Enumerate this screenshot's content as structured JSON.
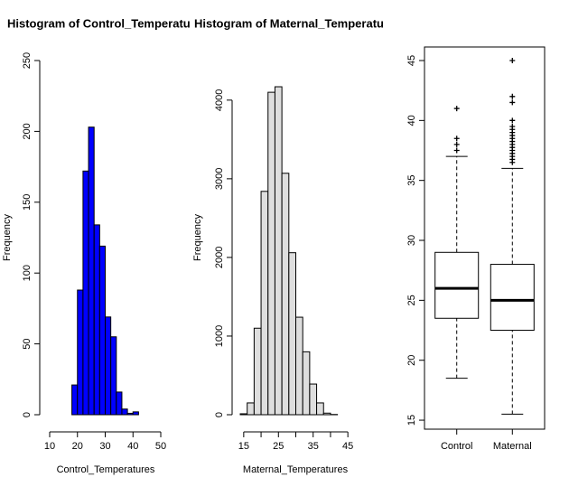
{
  "chart_data": [
    {
      "type": "histogram",
      "title": "Histogram of Control_Temperatu",
      "xlabel": "Control_Temperatures",
      "ylabel": "Frequency",
      "bins": [
        18,
        20,
        22,
        24,
        26,
        28,
        30,
        32,
        34,
        36,
        38,
        40,
        42
      ],
      "values": [
        21,
        88,
        172,
        203,
        134,
        119,
        69,
        55,
        16,
        4,
        1,
        2
      ],
      "color": "#0000ff",
      "xlim": [
        10,
        50
      ],
      "xticks": [
        10,
        20,
        30,
        40,
        50
      ],
      "xticklabel_step": 1,
      "ylim": [
        0,
        250
      ],
      "yticks": [
        0,
        50,
        100,
        150,
        200,
        250
      ]
    },
    {
      "type": "histogram",
      "title": "Histogram of Maternal_Temperatu",
      "xlabel": "Maternal_Temperatures",
      "ylabel": "Frequency",
      "bins": [
        14,
        16,
        18,
        20,
        22,
        24,
        26,
        28,
        30,
        32,
        34,
        36,
        38,
        40,
        42
      ],
      "values": [
        12,
        150,
        1100,
        2840,
        4100,
        4170,
        3070,
        2060,
        1240,
        800,
        390,
        150,
        20,
        3
      ],
      "color": "#dedede",
      "xlim": [
        14,
        46
      ],
      "xticks": [
        15,
        20,
        25,
        30,
        35,
        40,
        45
      ],
      "xticklabel_step": 2,
      "ylim": [
        0,
        4400
      ],
      "yticks": [
        0,
        1000,
        2000,
        3000,
        4000
      ]
    },
    {
      "type": "boxplot",
      "categories": [
        "Control",
        "Maternal"
      ],
      "boxes": [
        {
          "whisker_low": 18.5,
          "q1": 23.5,
          "median": 26,
          "q3": 29,
          "whisker_high": 37,
          "outliers": [
            37.5,
            38,
            38.5,
            41
          ]
        },
        {
          "whisker_low": 15.5,
          "q1": 22.5,
          "median": 25,
          "q3": 28,
          "whisker_high": 36,
          "outliers": [
            36.5,
            36.75,
            37,
            37.25,
            37.5,
            37.75,
            38,
            38.25,
            38.5,
            38.75,
            39,
            39.25,
            39.5,
            40,
            41.5,
            42,
            45
          ]
        }
      ],
      "color": "#ffffff",
      "ylim": [
        14.25,
        46.13
      ],
      "yticks": [
        15,
        20,
        25,
        30,
        35,
        40,
        45
      ]
    }
  ]
}
